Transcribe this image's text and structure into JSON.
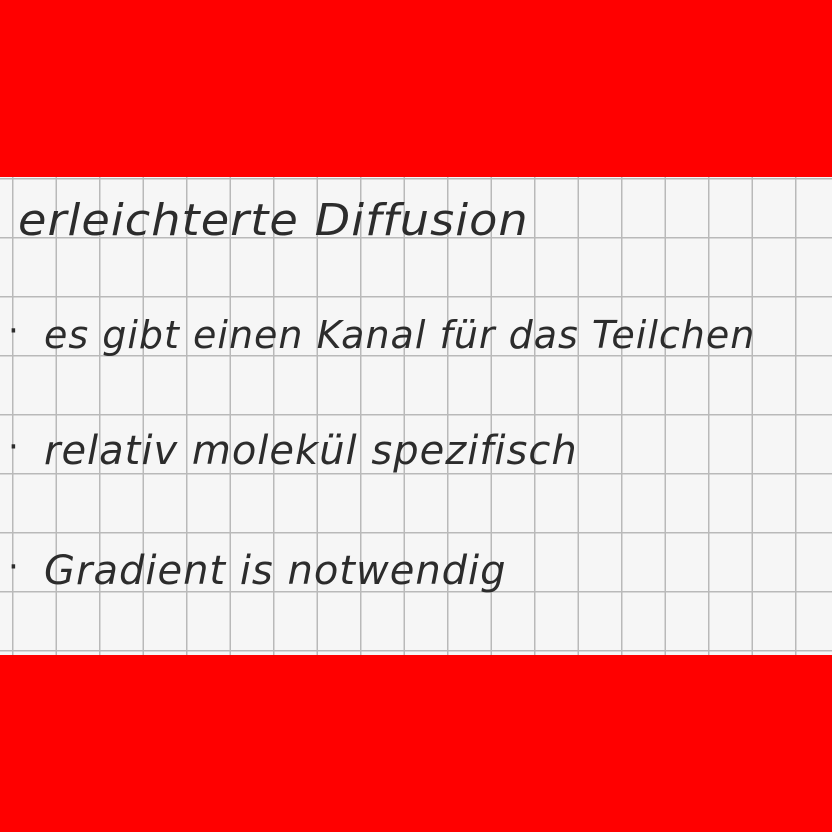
{
  "colors": {
    "band": "#ff0000",
    "paper": "#f6f6f6",
    "grid": "#b9b9b9",
    "ink": "#2c2c2c"
  },
  "note": {
    "title": "erleichterte Diffusion",
    "items": [
      {
        "bullet": "·",
        "text": "es gibt einen Kanal für das Teilchen"
      },
      {
        "bullet": "·",
        "text": "relativ molekül spezifisch"
      },
      {
        "bullet": "·",
        "text": "Gradient is notwendig"
      }
    ]
  }
}
